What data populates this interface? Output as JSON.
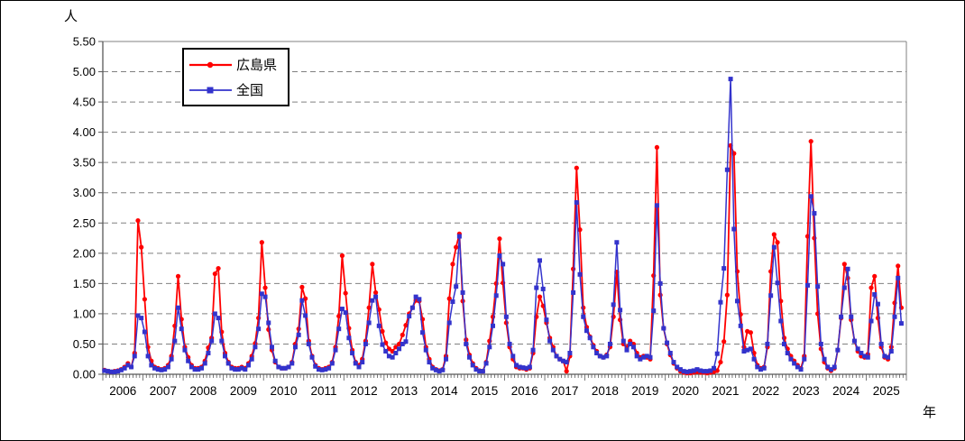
{
  "figure": {
    "y_unit_label": "人",
    "x_unit_label": "年",
    "background": "#ffffff",
    "border_color": "#000000",
    "grid_color": "#808080",
    "axis_color": "#595959",
    "legend": {
      "items": [
        {
          "label": "広島県",
          "color": "#ff0000",
          "marker": "circle"
        },
        {
          "label": "全国",
          "color": "#3333cc",
          "marker": "square"
        }
      ]
    }
  },
  "chart_data": {
    "type": "line",
    "title": "",
    "ylabel": "人",
    "xlabel": "年",
    "ylim": [
      0,
      5.5
    ],
    "y_tick_step": 0.5,
    "y_tick_labels": [
      "0.00",
      "0.50",
      "1.00",
      "1.50",
      "2.00",
      "2.50",
      "3.00",
      "3.50",
      "4.00",
      "4.50",
      "5.00",
      "5.50"
    ],
    "grid": true,
    "legend_position": "top-left-inside",
    "x_interval": "month",
    "x_start_month": "2006-01",
    "x_total_months": 240,
    "x_year_labels": [
      "2006",
      "2007",
      "2008",
      "2009",
      "2010",
      "2011",
      "2012",
      "2013",
      "2014",
      "2015",
      "2016",
      "2017",
      "2018",
      "2019",
      "2020",
      "2021",
      "2022",
      "2023",
      "2024",
      "2025"
    ],
    "series": [
      {
        "name": "広島県",
        "color": "#ff0000",
        "marker": "circle",
        "values": [
          0.07,
          0.05,
          0.04,
          0.05,
          0.06,
          0.08,
          0.12,
          0.18,
          0.12,
          0.35,
          2.54,
          2.1,
          1.24,
          0.45,
          0.22,
          0.12,
          0.1,
          0.08,
          0.1,
          0.15,
          0.3,
          0.8,
          1.62,
          0.91,
          0.45,
          0.28,
          0.15,
          0.1,
          0.1,
          0.12,
          0.22,
          0.44,
          0.6,
          1.66,
          1.75,
          0.7,
          0.35,
          0.2,
          0.12,
          0.1,
          0.1,
          0.12,
          0.1,
          0.18,
          0.3,
          0.51,
          0.93,
          2.18,
          1.43,
          0.74,
          0.4,
          0.2,
          0.12,
          0.1,
          0.1,
          0.12,
          0.2,
          0.5,
          0.75,
          1.44,
          1.25,
          0.55,
          0.3,
          0.15,
          0.1,
          0.08,
          0.1,
          0.12,
          0.2,
          0.45,
          0.96,
          1.96,
          1.34,
          0.76,
          0.4,
          0.2,
          0.15,
          0.25,
          0.55,
          1.1,
          1.82,
          1.35,
          1.07,
          0.71,
          0.52,
          0.42,
          0.38,
          0.45,
          0.5,
          0.65,
          0.81,
          1.0,
          1.1,
          1.22,
          1.21,
          0.91,
          0.45,
          0.25,
          0.12,
          0.08,
          0.06,
          0.08,
          0.3,
          1.25,
          1.82,
          2.1,
          2.32,
          1.21,
          0.57,
          0.32,
          0.18,
          0.1,
          0.06,
          0.05,
          0.2,
          0.55,
          0.95,
          1.5,
          2.24,
          1.51,
          0.85,
          0.45,
          0.25,
          0.12,
          0.1,
          0.1,
          0.08,
          0.1,
          0.35,
          0.95,
          1.28,
          1.13,
          0.85,
          0.6,
          0.45,
          0.3,
          0.25,
          0.22,
          0.05,
          0.3,
          1.74,
          3.41,
          2.39,
          1.1,
          0.78,
          0.62,
          0.48,
          0.38,
          0.3,
          0.28,
          0.32,
          0.45,
          0.95,
          1.69,
          0.9,
          0.5,
          0.45,
          0.55,
          0.5,
          0.35,
          0.28,
          0.3,
          0.28,
          0.25,
          1.63,
          3.75,
          1.31,
          0.76,
          0.5,
          0.32,
          0.18,
          0.1,
          0.05,
          0.03,
          0.02,
          0.02,
          0.03,
          0.04,
          0.03,
          0.03,
          0.02,
          0.03,
          0.04,
          0.06,
          0.2,
          0.54,
          1.31,
          3.78,
          3.65,
          1.7,
          0.99,
          0.45,
          0.71,
          0.69,
          0.35,
          0.15,
          0.1,
          0.12,
          0.45,
          1.7,
          2.31,
          2.18,
          1.21,
          0.6,
          0.42,
          0.3,
          0.22,
          0.15,
          0.1,
          0.3,
          2.28,
          3.85,
          2.25,
          1.0,
          0.42,
          0.2,
          0.1,
          0.06,
          0.1,
          0.4,
          0.93,
          1.82,
          1.59,
          0.9,
          0.55,
          0.38,
          0.3,
          0.28,
          0.33,
          1.43,
          1.62,
          0.93,
          0.45,
          0.28,
          0.25,
          0.45,
          1.18,
          1.79,
          1.1
        ]
      },
      {
        "name": "全国",
        "color": "#3333cc",
        "marker": "square",
        "values": [
          0.06,
          0.05,
          0.04,
          0.04,
          0.05,
          0.07,
          0.1,
          0.15,
          0.12,
          0.3,
          0.97,
          0.93,
          0.7,
          0.3,
          0.15,
          0.1,
          0.08,
          0.07,
          0.08,
          0.12,
          0.25,
          0.55,
          1.1,
          0.75,
          0.4,
          0.22,
          0.12,
          0.08,
          0.08,
          0.1,
          0.18,
          0.35,
          0.55,
          1.0,
          0.93,
          0.55,
          0.3,
          0.18,
          0.1,
          0.08,
          0.08,
          0.1,
          0.08,
          0.15,
          0.25,
          0.45,
          0.75,
          1.33,
          1.28,
          0.85,
          0.45,
          0.22,
          0.12,
          0.1,
          0.1,
          0.12,
          0.18,
          0.45,
          0.65,
          1.22,
          0.97,
          0.5,
          0.28,
          0.13,
          0.08,
          0.07,
          0.08,
          0.1,
          0.18,
          0.4,
          0.75,
          1.08,
          1.02,
          0.6,
          0.35,
          0.18,
          0.12,
          0.2,
          0.5,
          0.85,
          1.22,
          1.28,
          0.8,
          0.49,
          0.38,
          0.3,
          0.28,
          0.35,
          0.42,
          0.5,
          0.54,
          0.96,
          1.1,
          1.28,
          1.24,
          0.69,
          0.4,
          0.2,
          0.1,
          0.07,
          0.05,
          0.07,
          0.25,
          0.85,
          1.2,
          1.45,
          2.28,
          1.35,
          0.5,
          0.28,
          0.15,
          0.08,
          0.05,
          0.05,
          0.18,
          0.45,
          0.8,
          1.3,
          1.96,
          1.82,
          0.95,
          0.5,
          0.3,
          0.15,
          0.12,
          0.11,
          0.1,
          0.12,
          0.4,
          1.43,
          1.88,
          1.41,
          0.9,
          0.55,
          0.4,
          0.3,
          0.25,
          0.22,
          0.2,
          0.35,
          1.35,
          2.84,
          1.65,
          0.95,
          0.72,
          0.6,
          0.45,
          0.35,
          0.3,
          0.28,
          0.3,
          0.5,
          1.15,
          2.18,
          1.06,
          0.55,
          0.4,
          0.5,
          0.45,
          0.3,
          0.25,
          0.28,
          0.3,
          0.28,
          1.05,
          2.79,
          1.5,
          0.76,
          0.52,
          0.35,
          0.2,
          0.12,
          0.08,
          0.05,
          0.04,
          0.05,
          0.06,
          0.08,
          0.06,
          0.05,
          0.05,
          0.06,
          0.1,
          0.34,
          1.19,
          1.75,
          3.38,
          4.88,
          2.4,
          1.21,
          0.8,
          0.38,
          0.4,
          0.42,
          0.25,
          0.12,
          0.08,
          0.1,
          0.5,
          1.3,
          2.1,
          1.51,
          0.88,
          0.5,
          0.35,
          0.25,
          0.18,
          0.12,
          0.08,
          0.25,
          1.47,
          2.94,
          2.66,
          1.45,
          0.5,
          0.25,
          0.12,
          0.08,
          0.12,
          0.4,
          0.95,
          1.43,
          1.74,
          0.95,
          0.55,
          0.42,
          0.35,
          0.3,
          0.28,
          0.88,
          1.32,
          1.16,
          0.5,
          0.3,
          0.28,
          0.38,
          0.95,
          1.59,
          0.84
        ]
      }
    ]
  }
}
